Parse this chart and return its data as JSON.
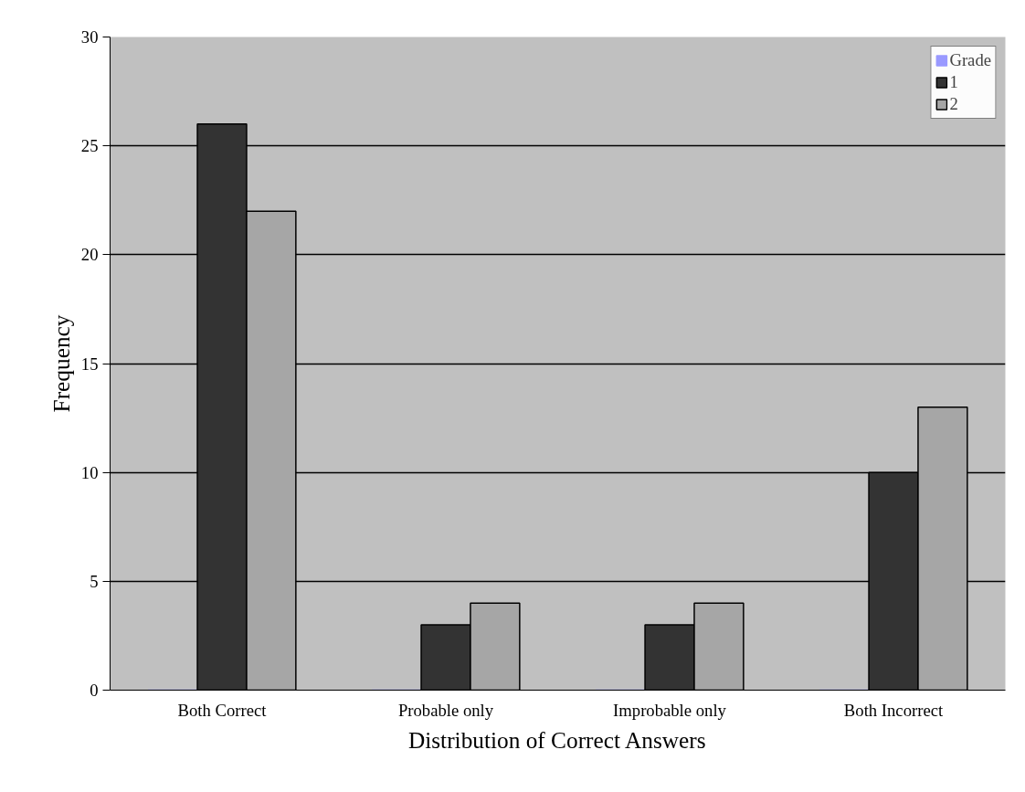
{
  "chart_data": {
    "type": "bar",
    "xlabel": "Distribution of Correct Answers",
    "ylabel": "Frequency",
    "categories": [
      "Both Correct",
      "Probable only",
      "Improbable only",
      "Both Incorrect"
    ],
    "series": [
      {
        "name": "Grade",
        "color": "#9999ff",
        "values": [
          0,
          0,
          0,
          0
        ]
      },
      {
        "name": "1",
        "color": "#333333",
        "values": [
          26,
          3,
          3,
          10
        ]
      },
      {
        "name": "2",
        "color": "#a6a6a6",
        "values": [
          22,
          4,
          4,
          13
        ]
      }
    ],
    "ylim": [
      0,
      30
    ],
    "yticks": [
      0,
      5,
      10,
      15,
      20,
      25,
      30
    ],
    "grid": "y",
    "legend": "top right"
  }
}
